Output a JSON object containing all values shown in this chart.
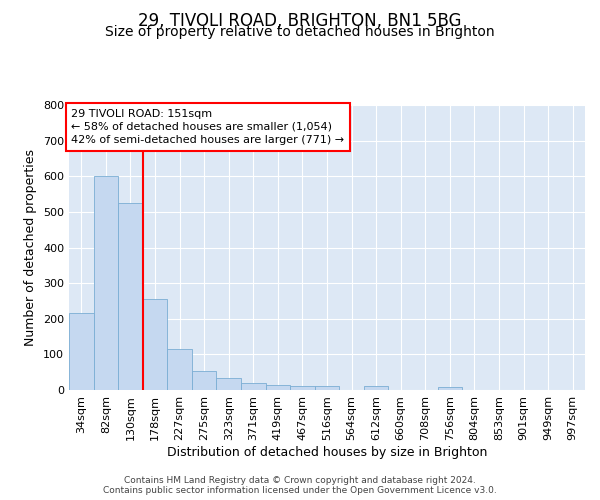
{
  "title": "29, TIVOLI ROAD, BRIGHTON, BN1 5BG",
  "subtitle": "Size of property relative to detached houses in Brighton",
  "xlabel": "Distribution of detached houses by size in Brighton",
  "ylabel": "Number of detached properties",
  "bin_labels": [
    "34sqm",
    "82sqm",
    "130sqm",
    "178sqm",
    "227sqm",
    "275sqm",
    "323sqm",
    "371sqm",
    "419sqm",
    "467sqm",
    "516sqm",
    "564sqm",
    "612sqm",
    "660sqm",
    "708sqm",
    "756sqm",
    "804sqm",
    "853sqm",
    "901sqm",
    "949sqm",
    "997sqm"
  ],
  "bar_values": [
    215,
    600,
    525,
    255,
    115,
    52,
    33,
    20,
    15,
    10,
    10,
    0,
    10,
    0,
    0,
    8,
    0,
    0,
    0,
    0,
    0
  ],
  "bar_color": "#c5d8f0",
  "bar_edge_color": "#7aadd4",
  "red_line_x": 2.5,
  "ylim": [
    0,
    800
  ],
  "yticks": [
    0,
    100,
    200,
    300,
    400,
    500,
    600,
    700,
    800
  ],
  "annotation_line1": "29 TIVOLI ROAD: 151sqm",
  "annotation_line2": "← 58% of detached houses are smaller (1,054)",
  "annotation_line3": "42% of semi-detached houses are larger (771) →",
  "bg_color": "#dde8f5",
  "grid_color": "#ffffff",
  "footer": "Contains HM Land Registry data © Crown copyright and database right 2024.\nContains public sector information licensed under the Open Government Licence v3.0.",
  "title_fontsize": 12,
  "subtitle_fontsize": 10,
  "axis_label_fontsize": 9,
  "tick_fontsize": 8,
  "footer_fontsize": 6.5
}
